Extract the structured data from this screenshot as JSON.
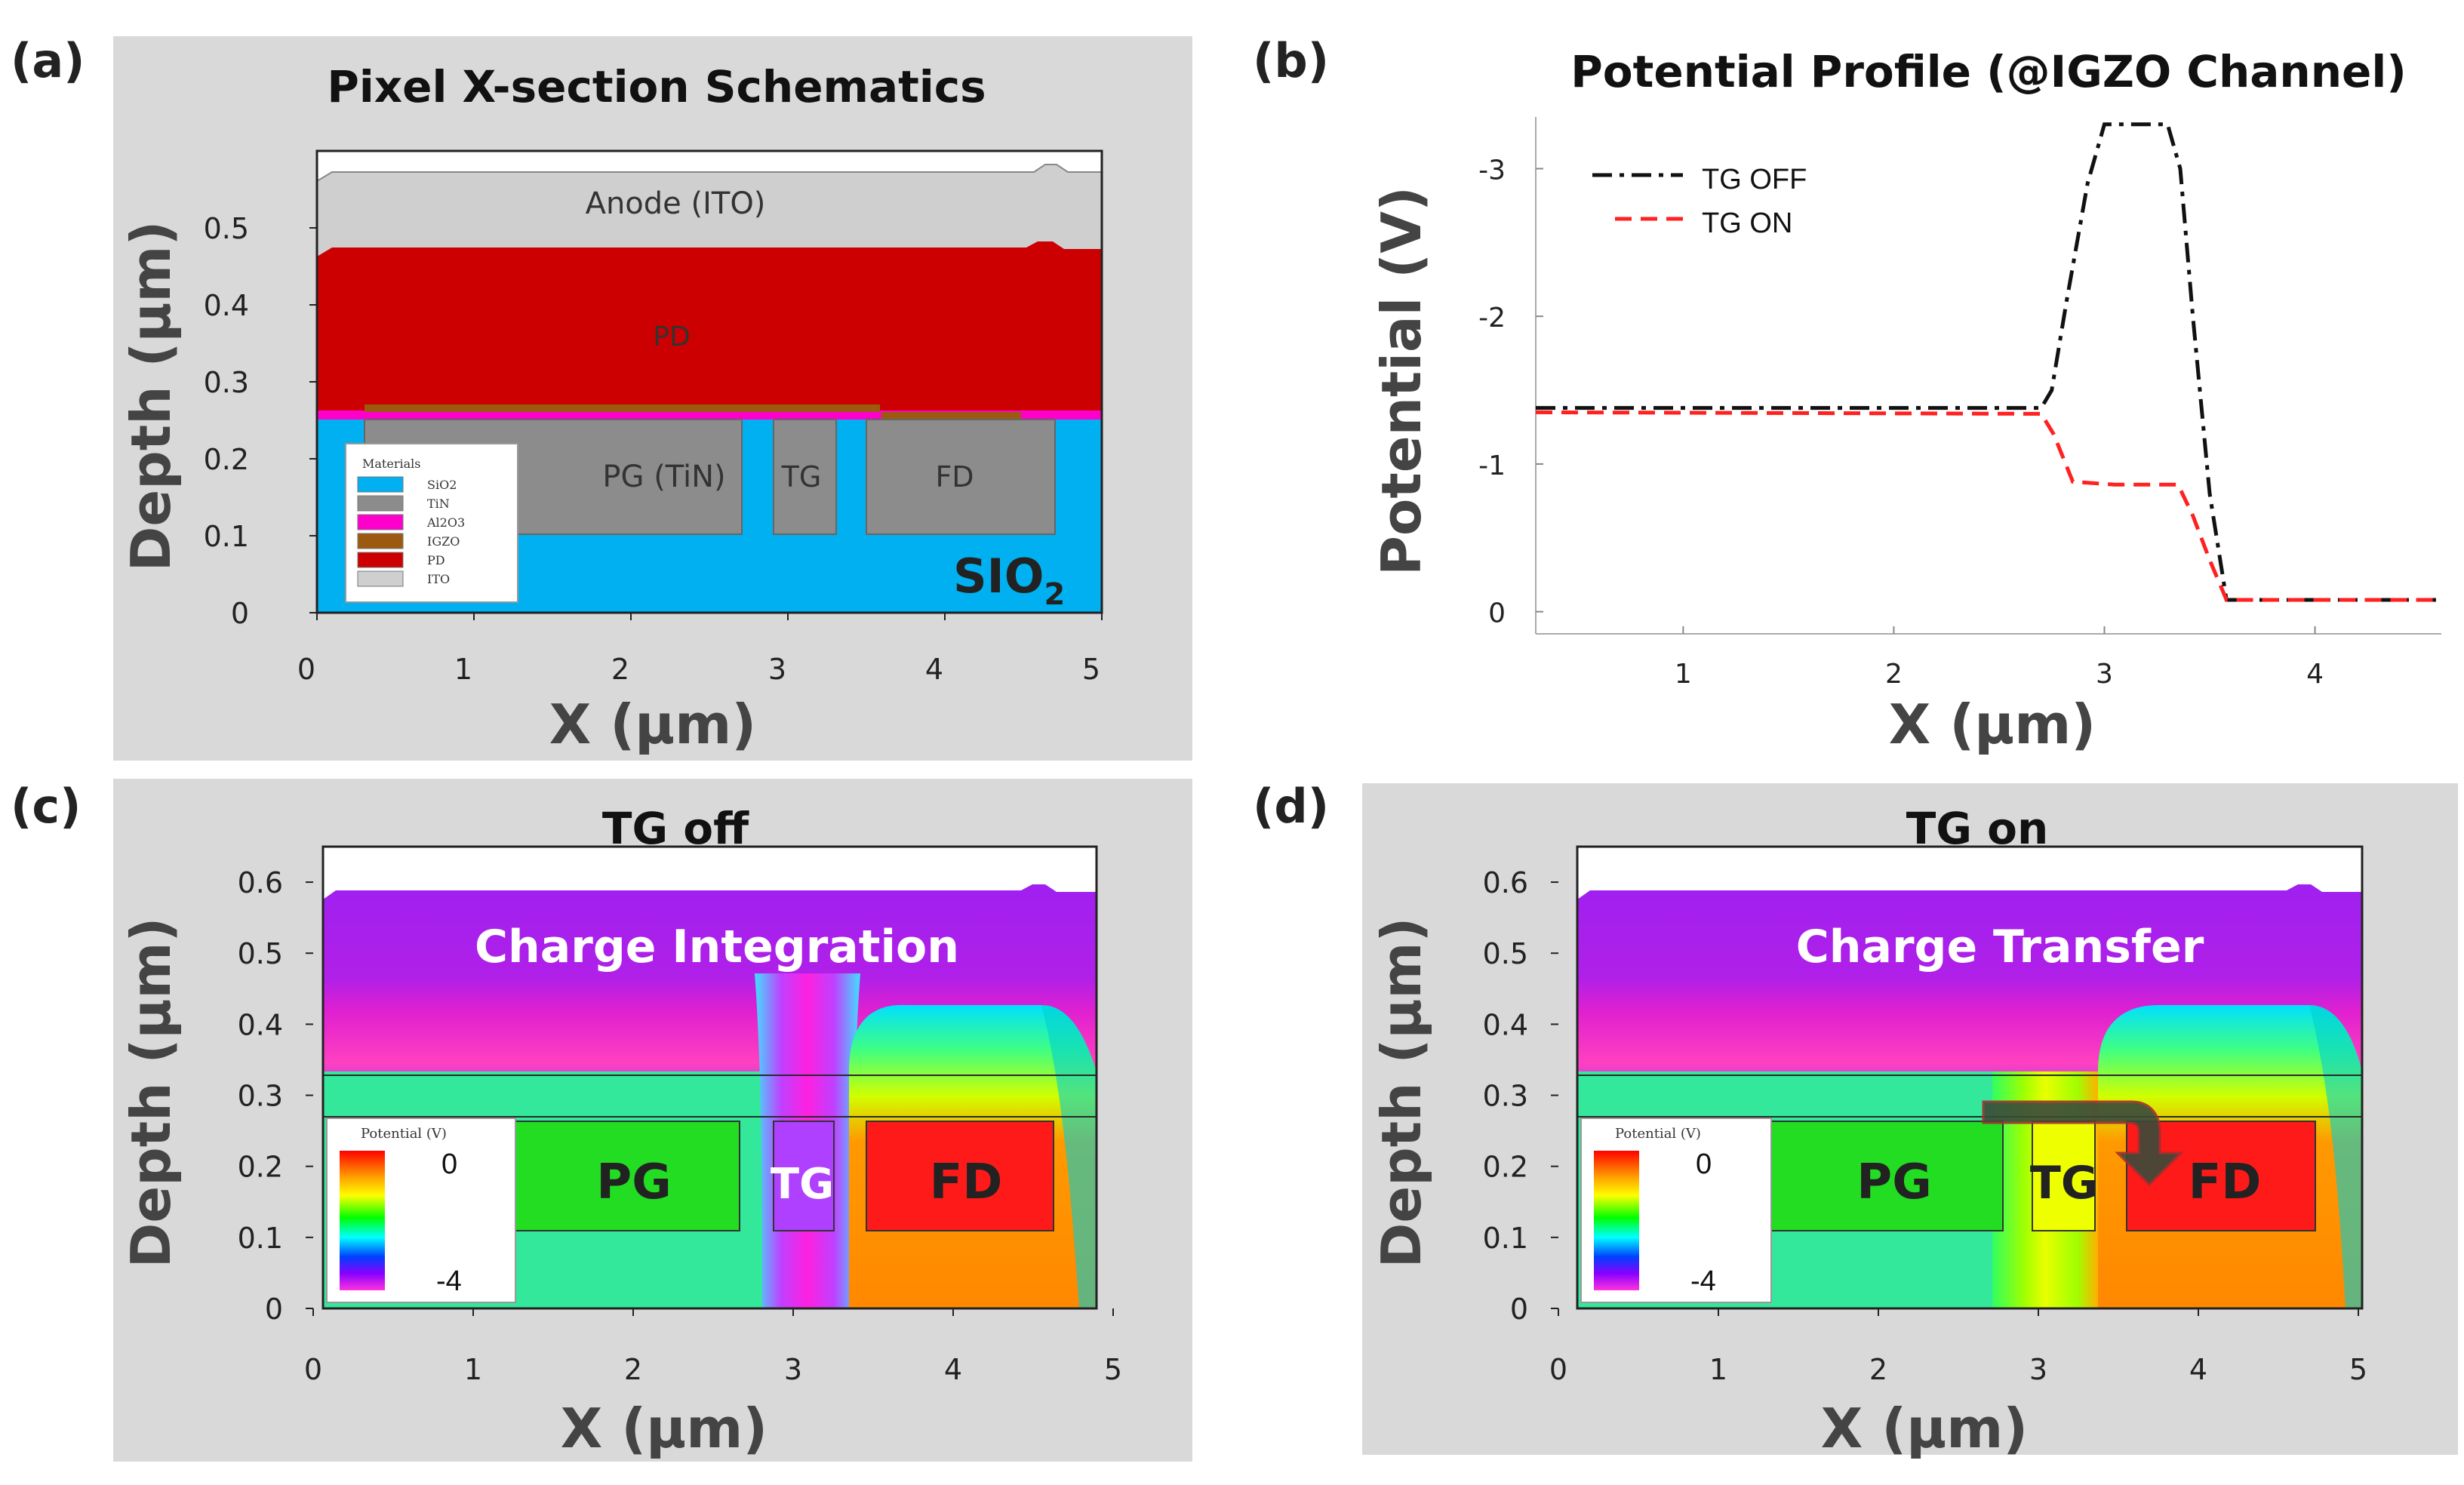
{
  "colors": {
    "panel_bg": "#d9d9d9",
    "sio2": "#00b0f0",
    "tin": "#8c8c8c",
    "al2o3": "#ff00cc",
    "igzo": "#9c5a10",
    "pd": "#cc0000",
    "ito": "#cfcfcf",
    "tg_off_line": "#111111",
    "tg_on_line": "#ff2020"
  },
  "panels": {
    "a": {
      "letter": "(a)",
      "title": "Pixel X-section Schematics",
      "xlabel": "X (µm)",
      "ylabel": "Depth (µm)",
      "xticks": [
        "0",
        "1",
        "2",
        "3",
        "4",
        "5"
      ],
      "yticks": [
        "0",
        "0.1",
        "0.2",
        "0.3",
        "0.4",
        "0.5"
      ],
      "regions": {
        "anode": "Anode (ITO)",
        "pd": "PD",
        "pg": "PG (TiN)",
        "tg": "TG",
        "fd": "FD",
        "sio2": "SIO",
        "sio2_sub": "2"
      },
      "legend": {
        "title": "Materials",
        "items": [
          {
            "label": "SiO2",
            "color": "#00b0f0"
          },
          {
            "label": "TiN",
            "color": "#8c8c8c"
          },
          {
            "label": "Al2O3",
            "color": "#ff00cc"
          },
          {
            "label": "IGZO",
            "color": "#9c5a10"
          },
          {
            "label": "PD",
            "color": "#cc0000"
          },
          {
            "label": "ITO",
            "color": "#cfcfcf"
          }
        ]
      }
    },
    "b": {
      "letter": "(b)",
      "xlabel": "X (µm)",
      "ylabel": "Potential (V)",
      "xticks": [
        "1",
        "2",
        "3",
        "4"
      ],
      "yticks": [
        "-3",
        "-2",
        "-1",
        "0"
      ]
    },
    "c": {
      "letter": "(c)",
      "title": "TG off",
      "caption": "Charge Integration",
      "xlabel": "X (µm)",
      "ylabel": "Depth (µm)",
      "xticks": [
        "0",
        "1",
        "2",
        "3",
        "4",
        "5"
      ],
      "yticks": [
        "0",
        "0.1",
        "0.2",
        "0.3",
        "0.4",
        "0.5",
        "0.6"
      ],
      "labels": {
        "pg": "PG",
        "tg": "TG",
        "fd": "FD"
      },
      "colorbar": {
        "title": "Potential (V)",
        "max": "0",
        "min": "-4"
      }
    },
    "d": {
      "letter": "(d)",
      "title": "TG on",
      "caption": "Charge Transfer",
      "xlabel": "X (µm)",
      "ylabel": "Depth (µm)",
      "xticks": [
        "0",
        "1",
        "2",
        "3",
        "4",
        "5"
      ],
      "yticks": [
        "0",
        "0.1",
        "0.2",
        "0.3",
        "0.4",
        "0.5",
        "0.6"
      ],
      "labels": {
        "pg": "PG",
        "tg": "TG",
        "fd": "FD"
      },
      "colorbar": {
        "title": "Potential (V)",
        "max": "0",
        "min": "-4"
      }
    }
  },
  "chart_data": {
    "type": "line",
    "title": "Potential Profile (@IGZO Channel)",
    "xlabel": "X (µm)",
    "ylabel": "Potential (V)",
    "xlim": [
      0.3,
      4.6
    ],
    "ylim": [
      0.15,
      -3.35
    ],
    "y_inverted": true,
    "legend_position": "top-left",
    "series": [
      {
        "name": "TG OFF",
        "style": "dash-dot",
        "color": "#111111",
        "x": [
          0.3,
          2.7,
          2.75,
          2.82,
          2.92,
          3.0,
          3.1,
          3.3,
          3.36,
          3.42,
          3.5,
          3.58,
          3.7,
          4.6
        ],
        "y": [
          -1.38,
          -1.38,
          -1.5,
          -2.1,
          -2.9,
          -3.3,
          -3.3,
          -3.3,
          -3.0,
          -2.0,
          -0.8,
          -0.08,
          -0.08,
          -0.08
        ]
      },
      {
        "name": "TG ON",
        "style": "dashed",
        "color": "#ff2020",
        "x": [
          0.3,
          2.7,
          2.76,
          2.85,
          3.05,
          3.35,
          3.42,
          3.5,
          3.58,
          3.7,
          4.6
        ],
        "y": [
          -1.35,
          -1.34,
          -1.2,
          -0.88,
          -0.86,
          -0.86,
          -0.65,
          -0.35,
          -0.08,
          -0.08,
          -0.08
        ]
      }
    ]
  }
}
